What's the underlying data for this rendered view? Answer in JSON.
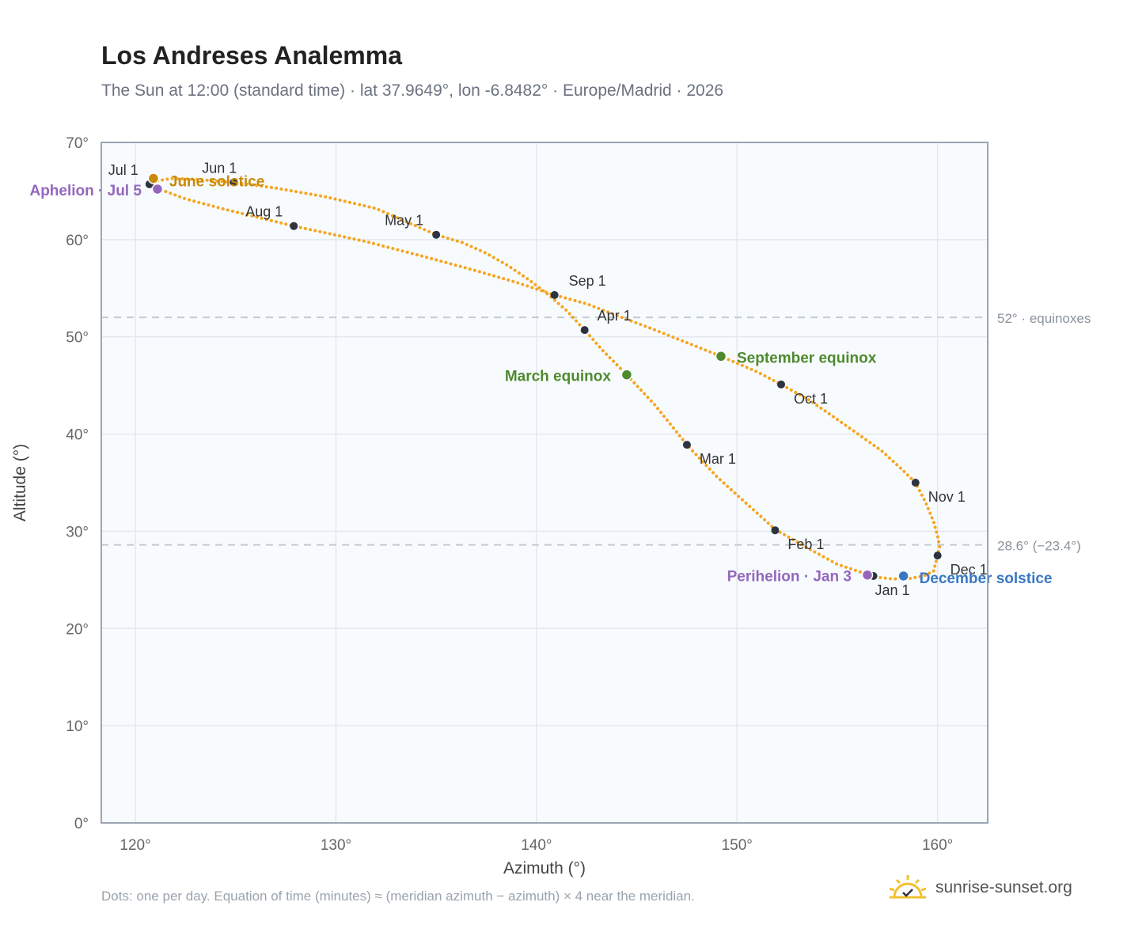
{
  "header": {
    "title": "Los Andreses Analemma",
    "subtitle": "The Sun at 12:00 (standard time) · lat 37.9649°, lon -6.8482° · Europe/Madrid · 2026"
  },
  "footer": {
    "note": "Dots: one per day. Equation of time (minutes) ≈ (meridian azimuth − azimuth) × 4 near the meridian.",
    "brand": "sunrise-sunset.org",
    "brand_icon": "sunrise-logo-icon"
  },
  "colors": {
    "curve": "#f5a623",
    "month_marker": "#2d3340",
    "equinox": "#4e8a2e",
    "june_solstice": "#c98a0b",
    "december_solstice": "#3a78c2",
    "apsis": "#9467bd",
    "reference_line": "#c4cad2",
    "plot_bg": "#f8fbfe",
    "grid": "#e3e8ee",
    "frame": "#9aa5b4"
  },
  "chart_data": {
    "type": "scatter",
    "xlabel": "Azimuth (°)",
    "ylabel": "Altitude (°)",
    "xlim": [
      118.3,
      162.5
    ],
    "ylim": [
      0,
      70
    ],
    "x_ticks": [
      120,
      130,
      140,
      150,
      160
    ],
    "y_ticks": [
      0,
      10,
      20,
      30,
      40,
      50,
      60,
      70
    ],
    "x_tick_labels": [
      "120°",
      "130°",
      "140°",
      "150°",
      "160°"
    ],
    "y_tick_labels": [
      "0°",
      "10°",
      "20°",
      "30°",
      "40°",
      "50°",
      "60°",
      "70°"
    ],
    "grid": true,
    "series": [
      {
        "type": "line",
        "style": "one dot per day",
        "points": [
          [
            156.9,
            25.3
          ],
          [
            157.7,
            25.1
          ],
          [
            158.5,
            25.1
          ],
          [
            159.3,
            25.4
          ],
          [
            159.8,
            25.9
          ],
          [
            160.0,
            27.5
          ],
          [
            160.1,
            28.4
          ],
          [
            160.0,
            29.5
          ],
          [
            159.8,
            31.0
          ],
          [
            159.4,
            33.0
          ],
          [
            158.9,
            35.0
          ],
          [
            158.1,
            36.6
          ],
          [
            157.2,
            38.3
          ],
          [
            156.1,
            39.9
          ],
          [
            155.0,
            41.5
          ],
          [
            153.6,
            43.5
          ],
          [
            152.2,
            45.1
          ],
          [
            151.0,
            46.4
          ],
          [
            149.2,
            48.0
          ],
          [
            147.5,
            49.4
          ],
          [
            145.8,
            50.8
          ],
          [
            144.0,
            52.2
          ],
          [
            142.5,
            53.4
          ],
          [
            140.9,
            54.3
          ],
          [
            139.0,
            55.6
          ],
          [
            137.0,
            56.8
          ],
          [
            134.5,
            58.2
          ],
          [
            131.5,
            59.8
          ],
          [
            127.9,
            61.4
          ],
          [
            124.5,
            63.1
          ],
          [
            122.5,
            64.2
          ],
          [
            121.2,
            65.2
          ],
          [
            120.9,
            65.8
          ],
          [
            121.0,
            66.0
          ],
          [
            121.8,
            66.3
          ],
          [
            123.0,
            66.2
          ],
          [
            124.9,
            65.9
          ],
          [
            127.0,
            65.3
          ],
          [
            129.5,
            64.4
          ],
          [
            132.0,
            63.2
          ],
          [
            135.0,
            60.5
          ],
          [
            136.3,
            59.7
          ],
          [
            137.5,
            58.6
          ],
          [
            138.6,
            57.3
          ],
          [
            139.6,
            55.9
          ],
          [
            140.5,
            54.5
          ],
          [
            141.5,
            52.7
          ],
          [
            142.4,
            50.7
          ],
          [
            143.3,
            48.6
          ],
          [
            144.5,
            46.1
          ],
          [
            145.9,
            43.0
          ],
          [
            147.5,
            38.9
          ],
          [
            149.0,
            35.6
          ],
          [
            150.5,
            32.8
          ],
          [
            151.9,
            30.2
          ],
          [
            153.5,
            28.3
          ],
          [
            155.0,
            26.6
          ],
          [
            156.9,
            25.3
          ]
        ]
      }
    ],
    "month_markers": [
      {
        "label": "Jan 1",
        "x": 156.8,
        "y": 25.4
      },
      {
        "label": "Feb 1",
        "x": 151.9,
        "y": 30.1
      },
      {
        "label": "Mar 1",
        "x": 147.5,
        "y": 38.9
      },
      {
        "label": "Apr 1",
        "x": 142.4,
        "y": 50.7
      },
      {
        "label": "May 1",
        "x": 135.0,
        "y": 60.5
      },
      {
        "label": "Jun 1",
        "x": 124.9,
        "y": 65.9
      },
      {
        "label": "Jul 1",
        "x": 120.7,
        "y": 65.7
      },
      {
        "label": "Aug 1",
        "x": 127.9,
        "y": 61.4
      },
      {
        "label": "Sep 1",
        "x": 140.9,
        "y": 54.3
      },
      {
        "label": "Oct 1",
        "x": 152.2,
        "y": 45.1
      },
      {
        "label": "Nov 1",
        "x": 158.9,
        "y": 35.0
      },
      {
        "label": "Dec 1",
        "x": 160.0,
        "y": 27.5
      }
    ],
    "events": [
      {
        "label": "March equinox",
        "x": 144.5,
        "y": 46.1,
        "kind": "equinox"
      },
      {
        "label": "September equinox",
        "x": 149.2,
        "y": 48.0,
        "kind": "equinox"
      },
      {
        "label": "June solstice",
        "x": 120.9,
        "y": 66.3,
        "kind": "june_solstice"
      },
      {
        "label": "December solstice",
        "x": 158.3,
        "y": 25.4,
        "kind": "december_solstice"
      },
      {
        "label": "Aphelion · Jul 5",
        "x": 121.1,
        "y": 65.2,
        "kind": "apsis"
      },
      {
        "label": "Perihelion · Jan 3",
        "x": 156.5,
        "y": 25.5,
        "kind": "apsis"
      }
    ],
    "reference_lines": [
      {
        "y": 52.0,
        "label": "52° · equinoxes"
      },
      {
        "y": 28.6,
        "label": "28.6° (−23.4°)"
      }
    ]
  }
}
